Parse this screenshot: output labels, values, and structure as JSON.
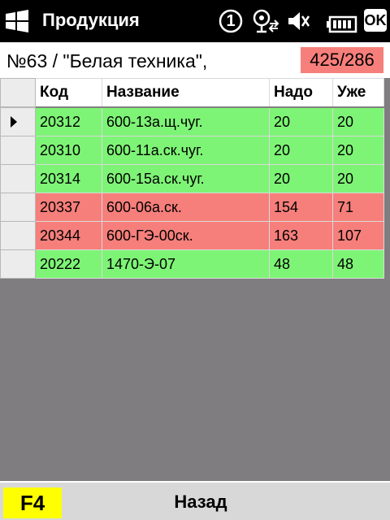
{
  "statusbar": {
    "app_title": "Продукция",
    "ok_label": "OK",
    "notification_count": "1"
  },
  "header": {
    "order_title": "№63 / \"Белая техника\",",
    "counter": "425/286",
    "counter_color": "#f77f7b"
  },
  "grid": {
    "columns": [
      "Код",
      "Название",
      "Надо",
      "Уже"
    ],
    "rows": [
      {
        "code": "20312",
        "name": "600-13а.щ.чуг.",
        "need": "20",
        "done": "20",
        "status": "ok"
      },
      {
        "code": "20310",
        "name": "600-11а.ск.чуг.",
        "need": "20",
        "done": "20",
        "status": "ok"
      },
      {
        "code": "20314",
        "name": "600-15а.ск.чуг.",
        "need": "20",
        "done": "20",
        "status": "ok"
      },
      {
        "code": "20337",
        "name": "600-06а.ск.",
        "need": "154",
        "done": "71",
        "status": "bad"
      },
      {
        "code": "20344",
        "name": "600-ГЭ-00ск.",
        "need": "163",
        "done": "107",
        "status": "bad"
      },
      {
        "code": "20222",
        "name": "1470-Э-07",
        "need": "48",
        "done": "48",
        "status": "ok"
      }
    ],
    "selected_row": 0,
    "colors": {
      "ok": "#7ef476",
      "bad": "#f67f7b",
      "empty": "#7f7d7f"
    }
  },
  "softbar": {
    "f4_label": "F4",
    "back_label": "Назад"
  }
}
